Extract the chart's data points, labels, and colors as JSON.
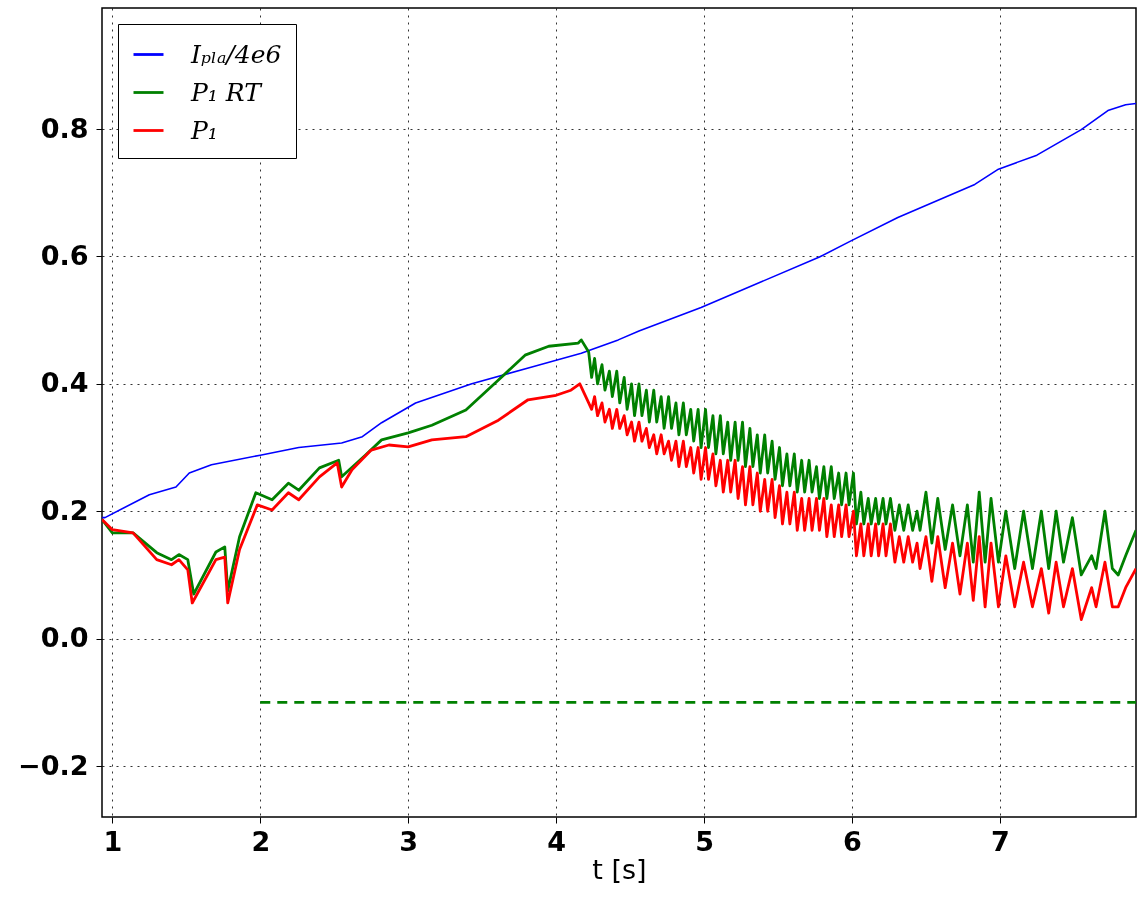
{
  "chart_data": {
    "type": "line",
    "xlabel": "t [s]",
    "xlim": [
      0.93,
      7.92
    ],
    "ylim": [
      -0.28,
      0.99
    ],
    "xticks": [
      1,
      2,
      3,
      4,
      5,
      6,
      7
    ],
    "yticks": [
      {
        "value": -0.2,
        "label": "−0.2"
      },
      {
        "value": 0,
        "label": "0.0"
      },
      {
        "value": 0.2,
        "label": "0.2"
      },
      {
        "value": 0.4,
        "label": "0.4"
      },
      {
        "value": 0.6,
        "label": "0.6"
      },
      {
        "value": 0.8,
        "label": "0.8"
      }
    ],
    "grid": true,
    "legend": "top left",
    "series": [
      {
        "name": "Iₚₗₐ/4e6",
        "color": "#0000ff",
        "x": [
          0.93,
          0.95,
          1.25,
          1.43,
          1.52,
          1.67,
          2.0,
          2.26,
          2.55,
          2.69,
          2.82,
          3.05,
          3.43,
          3.83,
          4.17,
          4.42,
          4.56,
          4.98,
          5.78,
          5.99,
          6.31,
          6.83,
          6.99,
          7.25,
          7.55,
          7.73,
          7.85,
          7.92
        ],
        "values": [
          0.19,
          0.19,
          0.226,
          0.238,
          0.26,
          0.273,
          0.288,
          0.3,
          0.307,
          0.317,
          0.339,
          0.37,
          0.4,
          0.426,
          0.448,
          0.469,
          0.483,
          0.52,
          0.599,
          0.624,
          0.661,
          0.713,
          0.737,
          0.759,
          0.799,
          0.829,
          0.838,
          0.84
        ]
      },
      {
        "name": "P₁ RT",
        "color": "#008000",
        "x": [
          0.93,
          1.0,
          1.14,
          1.3,
          1.4,
          1.45,
          1.51,
          1.55,
          1.7,
          1.76,
          1.78,
          1.86,
          1.97,
          2.08,
          2.19,
          2.26,
          2.4,
          2.53,
          2.55,
          2.71,
          2.82,
          3.0,
          3.16,
          3.39,
          3.61,
          3.79,
          3.95,
          4.15,
          4.17,
          4.22,
          4.24,
          4.26,
          4.28,
          4.31,
          4.33,
          4.36,
          4.38,
          4.41,
          4.43,
          4.46,
          4.48,
          4.51,
          4.53,
          4.56,
          4.58,
          4.61,
          4.63,
          4.66,
          4.68,
          4.71,
          4.73,
          4.76,
          4.78,
          4.81,
          4.83,
          4.86,
          4.88,
          4.91,
          4.93,
          4.96,
          4.98,
          5.01,
          5.03,
          5.06,
          5.08,
          5.11,
          5.13,
          5.16,
          5.18,
          5.21,
          5.23,
          5.26,
          5.28,
          5.31,
          5.33,
          5.36,
          5.38,
          5.41,
          5.43,
          5.46,
          5.48,
          5.51,
          5.53,
          5.56,
          5.58,
          5.61,
          5.63,
          5.66,
          5.68,
          5.71,
          5.73,
          5.76,
          5.78,
          5.81,
          5.83,
          5.86,
          5.88,
          5.91,
          5.93,
          5.96,
          5.98,
          6.01,
          6.03,
          6.06,
          6.08,
          6.11,
          6.13,
          6.16,
          6.18,
          6.21,
          6.23,
          6.26,
          6.29,
          6.32,
          6.35,
          6.38,
          6.41,
          6.44,
          6.46,
          6.5,
          6.54,
          6.58,
          6.63,
          6.68,
          6.73,
          6.78,
          6.82,
          6.86,
          6.9,
          6.94,
          6.99,
          7.04,
          7.1,
          7.16,
          7.22,
          7.28,
          7.33,
          7.38,
          7.43,
          7.49,
          7.55,
          7.62,
          7.65,
          7.71,
          7.76,
          7.8,
          7.85,
          7.92
        ],
        "values": [
          0.187,
          0.166,
          0.166,
          0.135,
          0.124,
          0.132,
          0.124,
          0.07,
          0.136,
          0.144,
          0.075,
          0.16,
          0.229,
          0.218,
          0.244,
          0.233,
          0.268,
          0.28,
          0.254,
          0.288,
          0.312,
          0.323,
          0.335,
          0.359,
          0.406,
          0.445,
          0.459,
          0.464,
          0.469,
          0.45,
          0.41,
          0.44,
          0.4,
          0.43,
          0.39,
          0.42,
          0.38,
          0.42,
          0.37,
          0.41,
          0.36,
          0.4,
          0.35,
          0.4,
          0.35,
          0.39,
          0.34,
          0.39,
          0.34,
          0.38,
          0.33,
          0.38,
          0.33,
          0.37,
          0.32,
          0.37,
          0.32,
          0.36,
          0.31,
          0.36,
          0.3,
          0.36,
          0.3,
          0.35,
          0.29,
          0.35,
          0.29,
          0.34,
          0.28,
          0.34,
          0.28,
          0.34,
          0.27,
          0.33,
          0.27,
          0.32,
          0.26,
          0.32,
          0.26,
          0.31,
          0.25,
          0.3,
          0.24,
          0.29,
          0.24,
          0.29,
          0.23,
          0.28,
          0.23,
          0.28,
          0.23,
          0.27,
          0.22,
          0.27,
          0.22,
          0.27,
          0.22,
          0.26,
          0.21,
          0.26,
          0.21,
          0.26,
          0.18,
          0.23,
          0.18,
          0.22,
          0.18,
          0.22,
          0.18,
          0.22,
          0.18,
          0.22,
          0.17,
          0.21,
          0.17,
          0.21,
          0.17,
          0.2,
          0.17,
          0.23,
          0.15,
          0.22,
          0.14,
          0.21,
          0.13,
          0.21,
          0.12,
          0.23,
          0.12,
          0.22,
          0.12,
          0.2,
          0.11,
          0.2,
          0.11,
          0.2,
          0.11,
          0.2,
          0.12,
          0.19,
          0.1,
          0.13,
          0.11,
          0.2,
          0.11,
          0.1,
          0.13,
          0.17
        ]
      },
      {
        "name": "P₁",
        "color": "#ff0000",
        "x": [
          0.93,
          1.0,
          1.14,
          1.3,
          1.4,
          1.45,
          1.51,
          1.54,
          1.7,
          1.76,
          1.78,
          1.86,
          1.98,
          2.08,
          2.19,
          2.26,
          2.4,
          2.52,
          2.55,
          2.62,
          2.75,
          2.87,
          3.0,
          3.16,
          3.39,
          3.61,
          3.81,
          4.0,
          4.1,
          4.16,
          4.22,
          4.24,
          4.26,
          4.28,
          4.31,
          4.33,
          4.36,
          4.38,
          4.41,
          4.43,
          4.46,
          4.48,
          4.51,
          4.53,
          4.56,
          4.58,
          4.61,
          4.63,
          4.66,
          4.68,
          4.71,
          4.73,
          4.76,
          4.78,
          4.81,
          4.83,
          4.86,
          4.88,
          4.91,
          4.93,
          4.96,
          4.98,
          5.01,
          5.03,
          5.06,
          5.08,
          5.11,
          5.13,
          5.16,
          5.18,
          5.21,
          5.23,
          5.26,
          5.28,
          5.31,
          5.33,
          5.36,
          5.38,
          5.41,
          5.43,
          5.46,
          5.48,
          5.51,
          5.53,
          5.56,
          5.58,
          5.61,
          5.63,
          5.66,
          5.68,
          5.71,
          5.73,
          5.76,
          5.78,
          5.81,
          5.83,
          5.86,
          5.88,
          5.91,
          5.93,
          5.96,
          5.98,
          6.01,
          6.03,
          6.06,
          6.08,
          6.11,
          6.13,
          6.16,
          6.18,
          6.21,
          6.23,
          6.26,
          6.29,
          6.32,
          6.35,
          6.38,
          6.41,
          6.44,
          6.46,
          6.5,
          6.54,
          6.58,
          6.63,
          6.68,
          6.73,
          6.78,
          6.82,
          6.86,
          6.9,
          6.94,
          6.99,
          7.04,
          7.1,
          7.16,
          7.22,
          7.28,
          7.33,
          7.38,
          7.43,
          7.49,
          7.55,
          7.62,
          7.65,
          7.71,
          7.76,
          7.8,
          7.85,
          7.92
        ],
        "values": [
          0.187,
          0.171,
          0.166,
          0.124,
          0.116,
          0.124,
          0.108,
          0.056,
          0.124,
          0.128,
          0.056,
          0.14,
          0.21,
          0.202,
          0.229,
          0.218,
          0.254,
          0.276,
          0.238,
          0.265,
          0.296,
          0.304,
          0.301,
          0.312,
          0.317,
          0.343,
          0.375,
          0.382,
          0.39,
          0.4,
          0.37,
          0.36,
          0.38,
          0.35,
          0.37,
          0.34,
          0.36,
          0.33,
          0.36,
          0.33,
          0.35,
          0.32,
          0.34,
          0.31,
          0.34,
          0.31,
          0.33,
          0.3,
          0.32,
          0.29,
          0.32,
          0.29,
          0.31,
          0.28,
          0.31,
          0.27,
          0.31,
          0.27,
          0.3,
          0.26,
          0.3,
          0.25,
          0.3,
          0.25,
          0.29,
          0.24,
          0.28,
          0.23,
          0.28,
          0.23,
          0.28,
          0.22,
          0.27,
          0.21,
          0.27,
          0.21,
          0.26,
          0.2,
          0.25,
          0.2,
          0.25,
          0.19,
          0.24,
          0.18,
          0.23,
          0.18,
          0.23,
          0.17,
          0.22,
          0.17,
          0.22,
          0.17,
          0.22,
          0.17,
          0.22,
          0.16,
          0.21,
          0.16,
          0.21,
          0.16,
          0.21,
          0.16,
          0.2,
          0.13,
          0.18,
          0.13,
          0.18,
          0.13,
          0.18,
          0.13,
          0.18,
          0.13,
          0.18,
          0.12,
          0.16,
          0.12,
          0.16,
          0.12,
          0.15,
          0.11,
          0.16,
          0.09,
          0.16,
          0.08,
          0.15,
          0.07,
          0.15,
          0.06,
          0.16,
          0.05,
          0.15,
          0.05,
          0.13,
          0.05,
          0.12,
          0.05,
          0.11,
          0.04,
          0.12,
          0.05,
          0.11,
          0.03,
          0.08,
          0.05,
          0.12,
          0.05,
          0.05,
          0.08,
          0.11
        ]
      },
      {
        "type": "line",
        "line_style": "dashed",
        "color": "#008000",
        "x": [
          2.0,
          7.92
        ],
        "values": [
          -0.1,
          -0.1
        ]
      }
    ]
  }
}
